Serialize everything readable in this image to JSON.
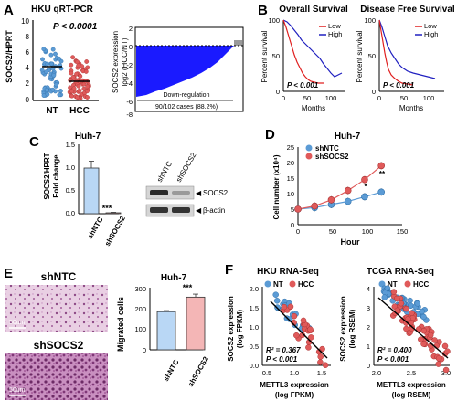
{
  "panels": {
    "A": {
      "letter": "A",
      "scatter": {
        "title": "HKU qRT-PCR",
        "ylabel": "SOCS2/HPRT",
        "pvalue": "P < 0.0001",
        "categories": [
          "NT",
          "HCC"
        ],
        "yticks": [
          "10",
          "8",
          "6",
          "4",
          "2",
          "0"
        ],
        "colors": {
          "NT": "#5b9bd5",
          "HCC": "#e05a5a"
        }
      },
      "waterfall": {
        "ylabel": "SOCS2 expression",
        "ylabel2": "log2 (HCC/NT)",
        "yticks": [
          "2",
          "0",
          "-2",
          "-4",
          "-6",
          "-8"
        ],
        "annotation": "Down-regulation",
        "cases": "90/102 cases (88.2%)",
        "color": "#1a1aff"
      }
    },
    "B": {
      "letter": "B",
      "overall": {
        "title": "Overall Survival",
        "ylabel": "Percent survival",
        "xlabel": "Months",
        "pvalue": "P < 0.001",
        "legend": [
          "Low",
          "High"
        ],
        "yticks": [
          "100",
          "50",
          "0"
        ],
        "xticks": [
          "0",
          "50",
          "100"
        ]
      },
      "disease_free": {
        "title": "Disease Free Survival",
        "ylabel": "Percent survival",
        "xlabel": "Months",
        "pvalue": "P < 0.001",
        "legend": [
          "Low",
          "High"
        ],
        "yticks": [
          "100",
          "50",
          "0"
        ],
        "xticks": [
          "0",
          "50",
          "100"
        ]
      },
      "colors": {
        "low": "#e02020",
        "high": "#2020c0"
      }
    },
    "C": {
      "letter": "C",
      "title": "Huh-7",
      "ylabel": "SOCS2/HPRT",
      "ylabel2": "Fold change",
      "yticks": [
        "1.5",
        "1.0",
        "0.5",
        "0.0"
      ],
      "categories": [
        "shNTC",
        "shSOCS2"
      ],
      "sig": "***",
      "blot_lanes": [
        "shNTC",
        "shSOCS2"
      ],
      "blot_labels": [
        "SOCS2",
        "β-actin"
      ]
    },
    "D": {
      "letter": "D",
      "title": "Huh-7",
      "ylabel": "Cell number (x10⁴)",
      "xlabel": "Hour",
      "legend": [
        "shNTC",
        "shSOCS2"
      ],
      "yticks": [
        "25",
        "20",
        "15",
        "10",
        "5",
        "0"
      ],
      "xticks": [
        "0",
        "50",
        "100",
        "150"
      ],
      "sig": [
        "*",
        "**"
      ]
    },
    "E": {
      "letter": "E",
      "img_labels": [
        "shNTC",
        "shSOCS2"
      ],
      "scalebar": "50um",
      "title": "Huh-7",
      "ylabel": "Migrated cells",
      "yticks": [
        "300",
        "200",
        "100",
        "0"
      ],
      "categories": [
        "shNTC",
        "shSOCS2"
      ],
      "sig": "***"
    },
    "F": {
      "letter": "F",
      "hku": {
        "title": "HKU RNA-Seq",
        "legend": [
          "NT",
          "HCC"
        ],
        "ylabel": "SOCS2 expression",
        "ylabel2": "(log FPKM)",
        "xlabel": "METTL3 expression",
        "xlabel2": "(log  FPKM)",
        "r2": "R² = 0.367",
        "pvalue": "P < 0.001",
        "yticks": [
          "2.0",
          "1.5",
          "1.0",
          "0.5",
          "0.0"
        ],
        "xticks": [
          "0.5",
          "1.0",
          "1.5"
        ]
      },
      "tcga": {
        "title": "TCGA RNA-Seq",
        "legend": [
          "NT",
          "HCC"
        ],
        "ylabel": "SOCS2 expression",
        "ylabel2": "(log RSEM)",
        "xlabel": "METTL3 expression",
        "xlabel2": "(log  RSEM)",
        "r2": "R² = 0.400",
        "pvalue": "P < 0.001",
        "yticks": [
          "4",
          "3",
          "2",
          "1",
          "0"
        ],
        "xticks": [
          "2.0",
          "2.5",
          "3.0"
        ]
      }
    }
  },
  "chart_data": [
    {
      "id": "C-bar",
      "type": "bar",
      "categories": [
        "shNTC",
        "shSOCS2"
      ],
      "values": [
        1.0,
        0.02
      ],
      "errors": [
        0.15,
        0.01
      ],
      "ylim": [
        0,
        1.5
      ]
    },
    {
      "id": "E-bar",
      "type": "bar",
      "categories": [
        "shNTC",
        "shSOCS2"
      ],
      "values": [
        190,
        262
      ],
      "errors": [
        5,
        15
      ],
      "ylim": [
        0,
        300
      ]
    },
    {
      "id": "D-line",
      "type": "line",
      "x": [
        0,
        24,
        48,
        72,
        96,
        120
      ],
      "series": [
        {
          "name": "shNTC",
          "values": [
            5,
            5.5,
            6.5,
            7.5,
            9,
            10.5
          ]
        },
        {
          "name": "shSOCS2",
          "values": [
            5,
            6,
            8,
            11,
            14.5,
            19
          ]
        }
      ],
      "xlim": [
        0,
        150
      ],
      "ylim": [
        0,
        25
      ]
    }
  ]
}
